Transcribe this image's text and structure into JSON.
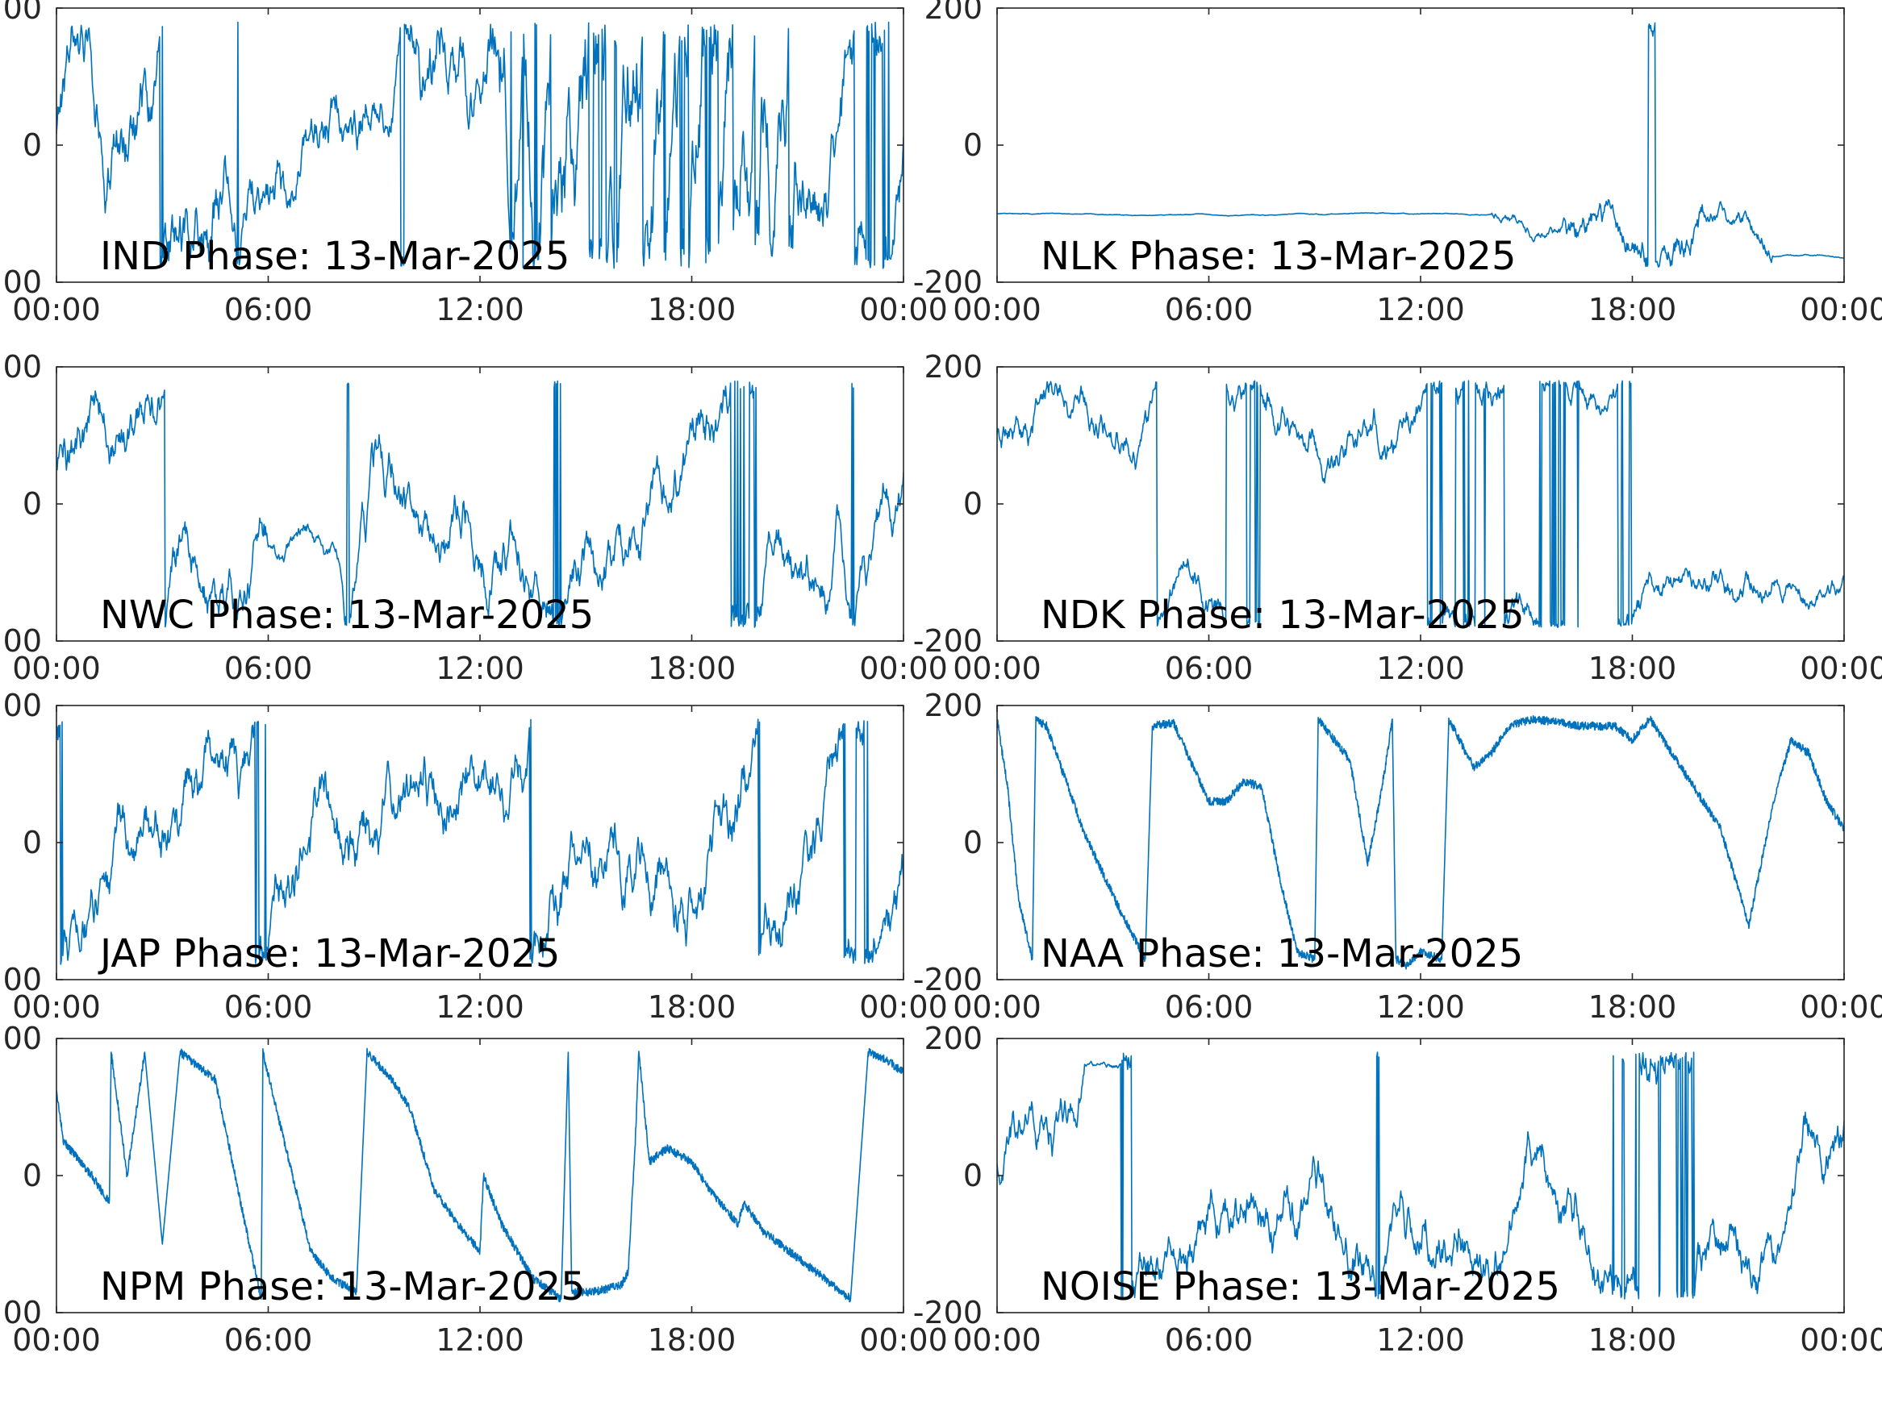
{
  "figure": {
    "x_tick_labels": [
      "00:00",
      "06:00",
      "12:00",
      "18:00",
      "00:00"
    ],
    "y_tick_labels": [
      "200",
      "0",
      "-200"
    ],
    "line_color": "#0072BD",
    "axis_color": "#262626",
    "text_color": "#000000"
  },
  "chart_data": [
    {
      "type": "line",
      "title": "IND Phase: 13-Mar-2025",
      "x_range": [
        "00:00",
        "24:00"
      ],
      "ylim": [
        -200,
        200
      ],
      "grid": false,
      "series": [
        {
          "style": "wrapped",
          "y_start": 40,
          "segments": [
            [
              0,
              5,
              60,
              200
            ],
            [
              5,
              10,
              40,
              140
            ],
            [
              10,
              12,
              45,
              210
            ],
            [
              12.5,
              17,
              300,
              400
            ],
            [
              17,
              21,
              300,
              400
            ],
            [
              21,
              24,
              90,
              220
            ]
          ]
        }
      ]
    },
    {
      "type": "line",
      "title": "NLK Phase: 13-Mar-2025",
      "x_range": [
        "00:00",
        "24:00"
      ],
      "ylim": [
        -200,
        200
      ],
      "grid": false,
      "series": [
        {
          "style": "wrapped",
          "y_start": -100,
          "segments": [
            [
              0,
              14,
              -0.22,
              2
            ],
            [
              14,
              16,
              -0.8,
              30
            ],
            [
              16,
              20,
              4,
              90
            ],
            [
              20,
              22,
              2,
              50
            ],
            [
              22,
              24,
              -0.8,
              4
            ]
          ]
        }
      ]
    },
    {
      "type": "line",
      "title": "NWC Phase: 13-Mar-2025",
      "x_range": [
        "00:00",
        "24:00"
      ],
      "ylim": [
        -200,
        200
      ],
      "grid": false,
      "series": [
        {
          "style": "wrapped",
          "y_start": 80,
          "segments": [
            [
              0,
              6,
              20,
              130
            ],
            [
              6,
              8,
              5,
              55
            ],
            [
              8,
              24,
              18,
              140
            ]
          ]
        }
      ]
    },
    {
      "type": "line",
      "title": "NDK Phase: 13-Mar-2025",
      "x_range": [
        "00:00",
        "24:00"
      ],
      "ylim": [
        -200,
        200
      ],
      "grid": false,
      "series": [
        {
          "style": "wrapped",
          "y_start": 100,
          "segments": [
            [
              0,
              15,
              10,
              90
            ],
            [
              15,
              22,
              8,
              70
            ],
            [
              22,
              24,
              6,
              50
            ]
          ]
        }
      ]
    },
    {
      "type": "line",
      "title": "JAP Phase: 13-Mar-2025",
      "x_range": [
        "00:00",
        "24:00"
      ],
      "ylim": [
        -200,
        200
      ],
      "grid": false,
      "series": [
        {
          "style": "wrapped",
          "y_start": 150,
          "segments": [
            [
              0,
              24,
              30,
              160
            ]
          ]
        }
      ]
    },
    {
      "type": "line",
      "title": "NAA Phase: 13-Mar-2025",
      "x_range": [
        "00:00",
        "24:00"
      ],
      "ylim": [
        -200,
        200
      ],
      "grid": false,
      "series": [
        {
          "style": "points",
          "points": [
            [
              0,
              180
            ],
            [
              0.3,
              80
            ],
            [
              0.6,
              -80
            ],
            [
              1.0,
              -170
            ],
            [
              1.1,
              180
            ],
            [
              1.4,
              170
            ],
            [
              2.5,
              10
            ],
            [
              3.5,
              -100
            ],
            [
              4.2,
              -170
            ],
            [
              4.4,
              170
            ],
            [
              5,
              175
            ],
            [
              6,
              60
            ],
            [
              6.5,
              60
            ],
            [
              7.0,
              90
            ],
            [
              7.5,
              80
            ],
            [
              8,
              -50
            ],
            [
              8.5,
              -160
            ],
            [
              9,
              -170
            ],
            [
              9.1,
              180
            ],
            [
              10,
              120
            ],
            [
              10.5,
              -30
            ],
            [
              10.8,
              50
            ],
            [
              11,
              110
            ],
            [
              11.2,
              180
            ],
            [
              11.3,
              -170
            ],
            [
              11.6,
              -180
            ],
            [
              12,
              -160
            ],
            [
              12.6,
              -170
            ],
            [
              12.8,
              180
            ],
            [
              13.5,
              110
            ],
            [
              14.0,
              130
            ],
            [
              14.5,
              170
            ],
            [
              15.2,
              180
            ],
            [
              16,
              175
            ],
            [
              16.5,
              170
            ],
            [
              17.5,
              170
            ],
            [
              18.0,
              150
            ],
            [
              18.5,
              180
            ],
            [
              19.5,
              100
            ],
            [
              20.5,
              20
            ],
            [
              21.3,
              -120
            ],
            [
              22,
              60
            ],
            [
              22.5,
              150
            ],
            [
              23,
              130
            ],
            [
              23.5,
              60
            ],
            [
              24,
              20
            ]
          ]
        }
      ]
    },
    {
      "type": "line",
      "title": "NPM Phase: 13-Mar-2025",
      "x_range": [
        "00:00",
        "24:00"
      ],
      "ylim": [
        -200,
        200
      ],
      "grid": false,
      "series": [
        {
          "style": "points",
          "points": [
            [
              0,
              120
            ],
            [
              0.2,
              50
            ],
            [
              1,
              0
            ],
            [
              1.5,
              -40
            ],
            [
              1.55,
              180
            ],
            [
              2,
              0
            ],
            [
              2.5,
              180
            ],
            [
              3,
              -100
            ],
            [
              3.5,
              180
            ],
            [
              4,
              160
            ],
            [
              4.5,
              140
            ],
            [
              5.3,
              -60
            ],
            [
              5.8,
              -180
            ],
            [
              5.85,
              180
            ],
            [
              6.5,
              40
            ],
            [
              7.2,
              -110
            ],
            [
              7.8,
              -150
            ],
            [
              8.5,
              -170
            ],
            [
              8.8,
              180
            ],
            [
              9.5,
              140
            ],
            [
              10,
              100
            ],
            [
              10.7,
              -20
            ],
            [
              11.5,
              -80
            ],
            [
              12,
              -110
            ],
            [
              12.1,
              0
            ],
            [
              12.6,
              -70
            ],
            [
              13.5,
              -150
            ],
            [
              14.3,
              -180
            ],
            [
              14.5,
              180
            ],
            [
              14.6,
              -170
            ],
            [
              15.2,
              -170
            ],
            [
              16,
              -160
            ],
            [
              16.2,
              -140
            ],
            [
              16.4,
              50
            ],
            [
              16.5,
              180
            ],
            [
              16.8,
              20
            ],
            [
              17.3,
              40
            ],
            [
              18,
              20
            ],
            [
              18.5,
              -20
            ],
            [
              19.3,
              -70
            ],
            [
              19.5,
              -40
            ],
            [
              20,
              -80
            ],
            [
              21,
              -120
            ],
            [
              22,
              -160
            ],
            [
              22.5,
              -180
            ],
            [
              23,
              180
            ],
            [
              23.5,
              170
            ],
            [
              24,
              150
            ]
          ]
        }
      ]
    },
    {
      "type": "line",
      "title": "NOISE Phase: 13-Mar-2025",
      "x_range": [
        "00:00",
        "24:00"
      ],
      "ylim": [
        -200,
        200
      ],
      "grid": false,
      "series": [
        {
          "style": "wrapped",
          "y_start": 20,
          "segments": [
            [
              0,
              2.5,
              15,
              120
            ],
            [
              2.5,
              3.5,
              -2,
              20
            ],
            [
              3.5,
              24,
              15,
              130
            ]
          ]
        }
      ]
    }
  ]
}
